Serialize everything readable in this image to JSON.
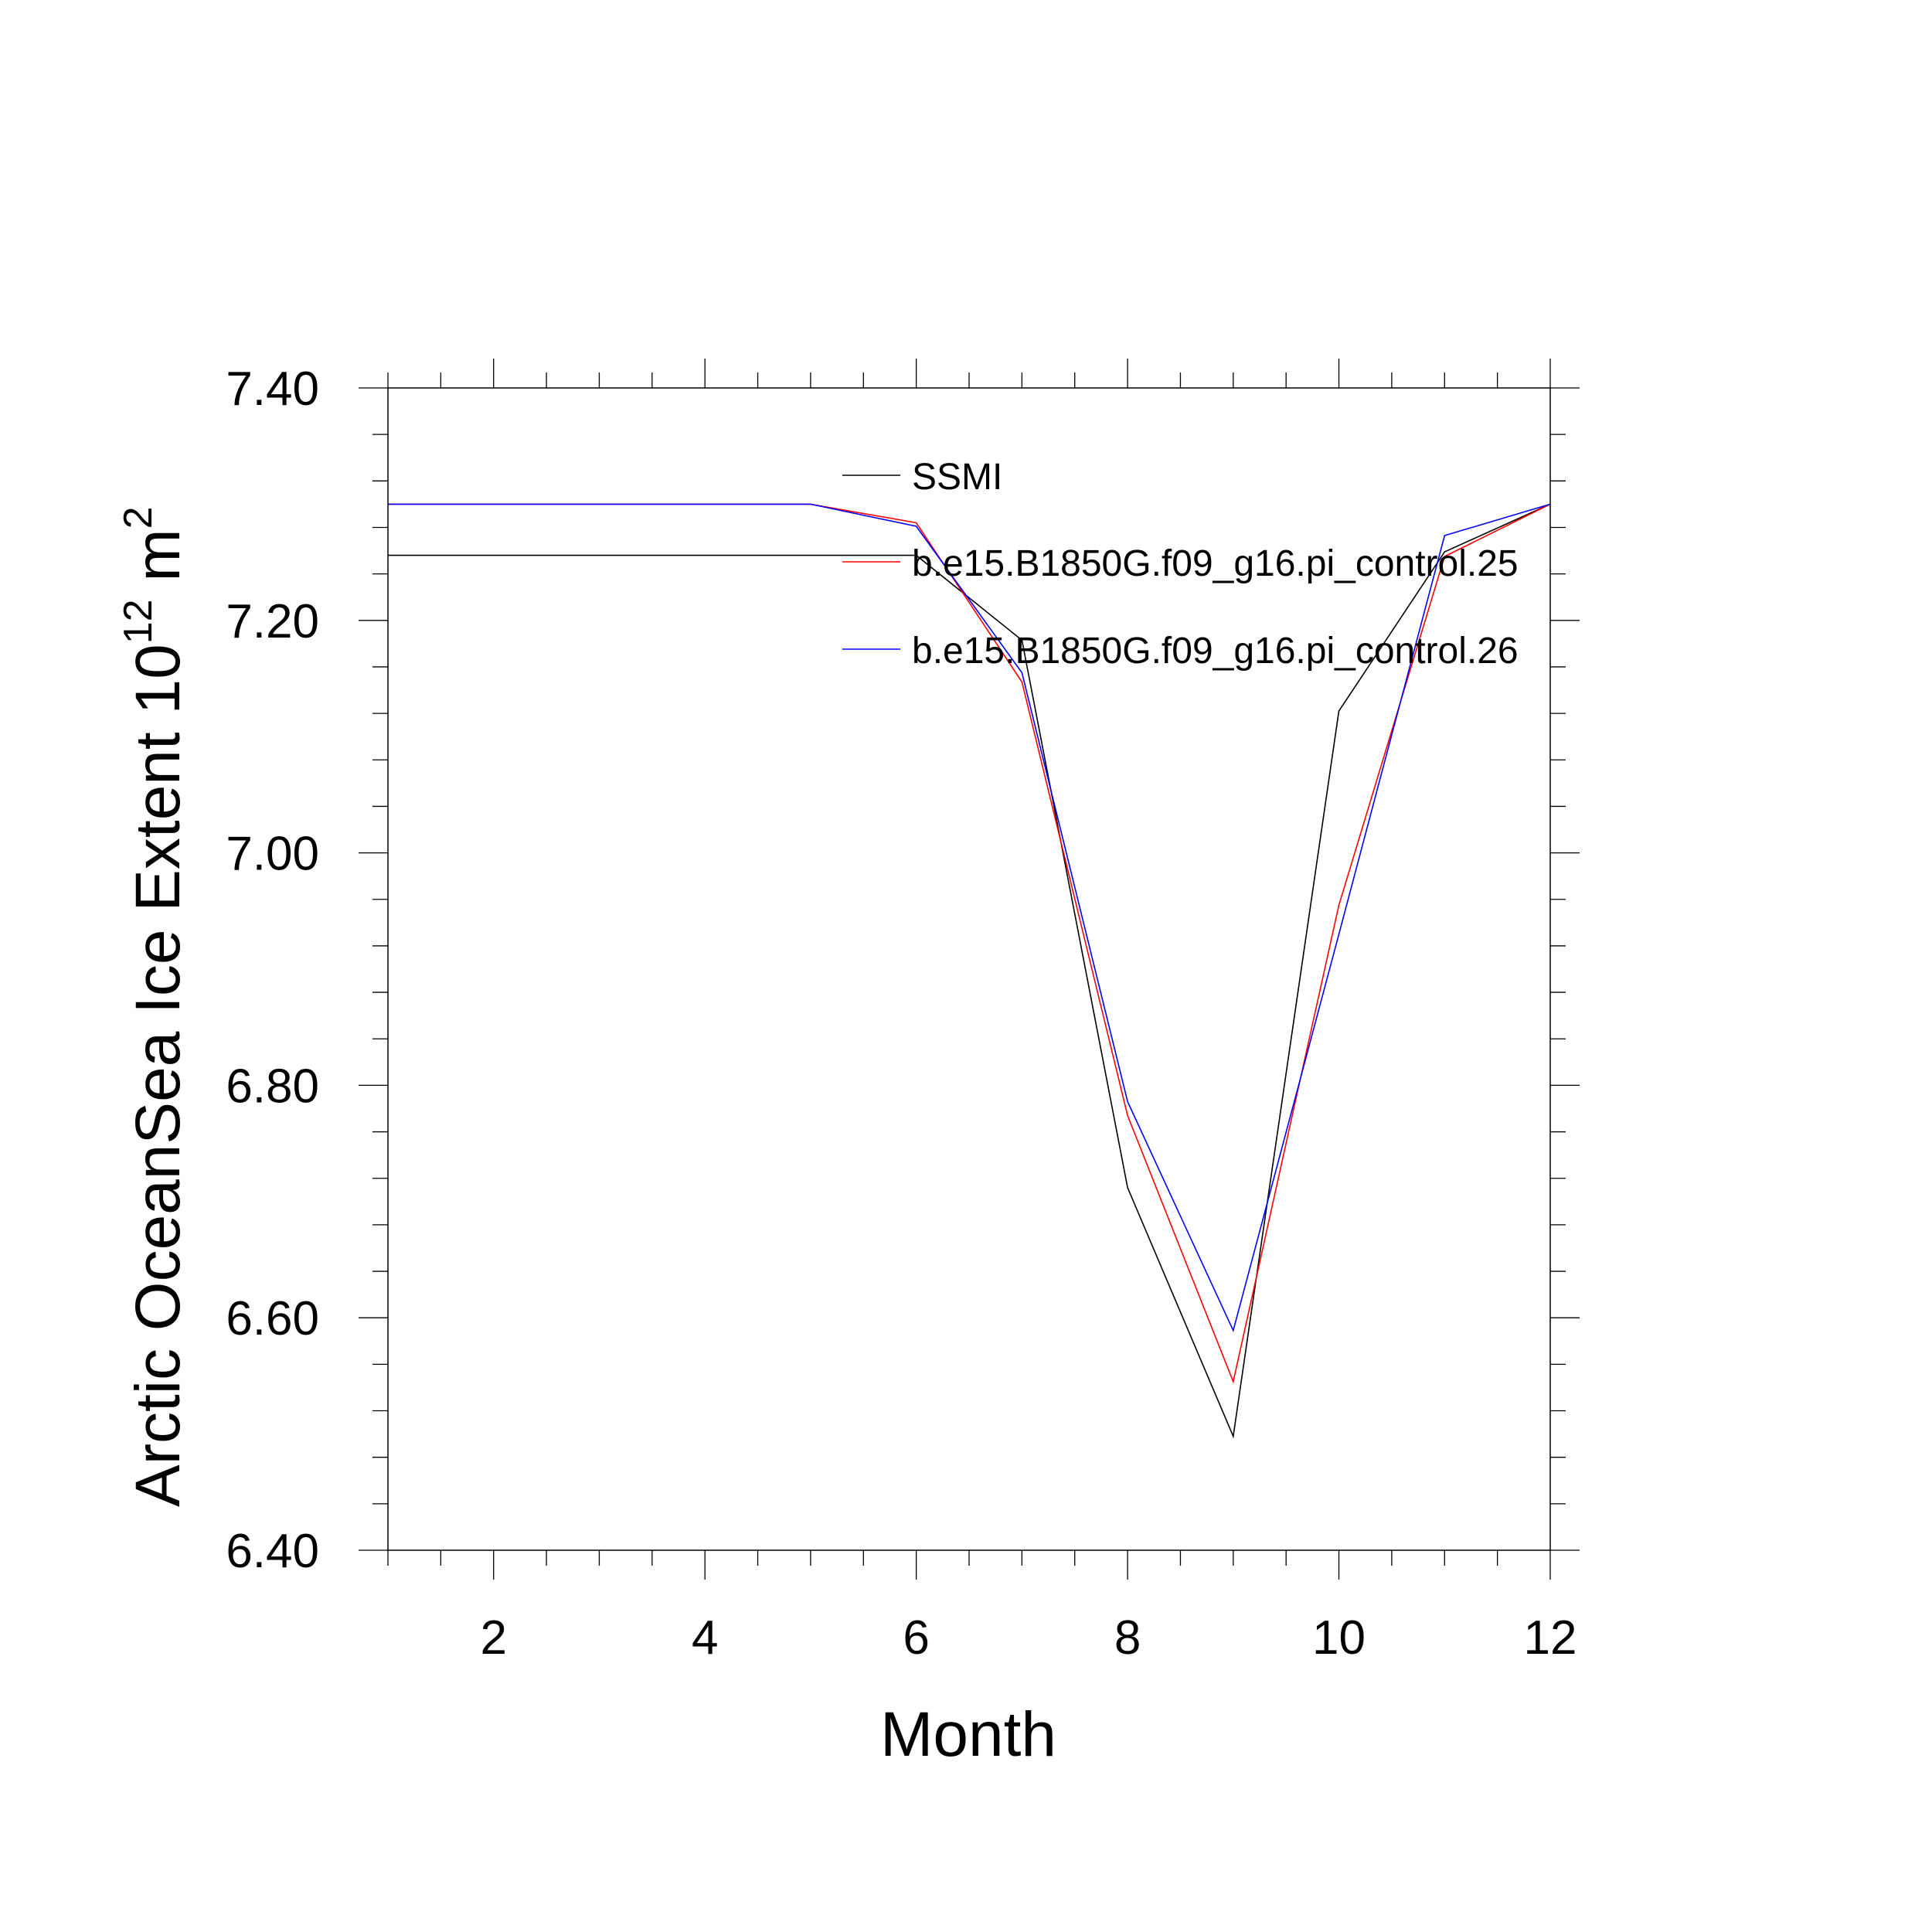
{
  "chart_data": {
    "type": "line",
    "title": "",
    "xlabel": "Month",
    "ylabel_main": "Arctic OceanSea Ice Extent 10",
    "ylabel_sup": "12",
    "ylabel_unit": " m",
    "ylabel_unit_sup": "2",
    "xlim": [
      1,
      12
    ],
    "ylim": [
      6.4,
      7.4
    ],
    "x_ticks": [
      2,
      4,
      6,
      8,
      10,
      12
    ],
    "x_tick_labels": [
      "2",
      "4",
      "6",
      "8",
      "10",
      "12"
    ],
    "y_ticks": [
      6.4,
      6.6,
      6.8,
      7.0,
      7.2,
      7.4
    ],
    "y_tick_labels": [
      "6.40",
      "6.60",
      "6.80",
      "7.00",
      "7.20",
      "7.40"
    ],
    "x": [
      1,
      2,
      3,
      4,
      5,
      6,
      7,
      8,
      9,
      10,
      11,
      12
    ],
    "series": [
      {
        "name": "SSMI",
        "color": "#000000",
        "values": [
          7.256,
          7.256,
          7.256,
          7.256,
          7.256,
          7.256,
          7.183,
          6.712,
          6.498,
          7.122,
          7.259,
          7.3
        ]
      },
      {
        "name": "b.e15.B1850G.f09_g16.pi_control.25",
        "color": "#ff0000",
        "values": [
          7.3,
          7.3,
          7.3,
          7.3,
          7.3,
          7.284,
          7.147,
          6.774,
          6.545,
          6.955,
          7.255,
          7.3
        ]
      },
      {
        "name": "b.e15.B1850G.f09_g16.pi_control.26",
        "color": "#0000ff",
        "values": [
          7.3,
          7.3,
          7.3,
          7.3,
          7.3,
          7.281,
          7.155,
          6.786,
          6.589,
          6.93,
          7.273,
          7.3
        ]
      }
    ],
    "grid": false,
    "legend_position": "top-right"
  }
}
